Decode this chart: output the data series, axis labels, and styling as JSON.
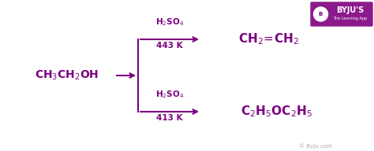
{
  "bg_color": "#ffffff",
  "purple": "#7B0080",
  "fig_width": 4.74,
  "fig_height": 1.92,
  "dpi": 100,
  "reactant": "CH$_3$CH$_2$OH",
  "condition_top_line1": "H$_2$SO$_4$",
  "condition_top_line2": "443 K",
  "condition_bot_line1": "H$_2$SO$_4$",
  "condition_bot_line2": "413 K",
  "product_top": "CH$_2$$\\!=\\!$CH$_2$",
  "product_bot": "C$_2$H$_5$OC$_2$H$_5$",
  "watermark": "© Byju.com",
  "byju_text": "BYJU'S",
  "byju_sub": "The Learning App",
  "xlim": [
    0,
    4.74
  ],
  "ylim": [
    0,
    1.92
  ]
}
